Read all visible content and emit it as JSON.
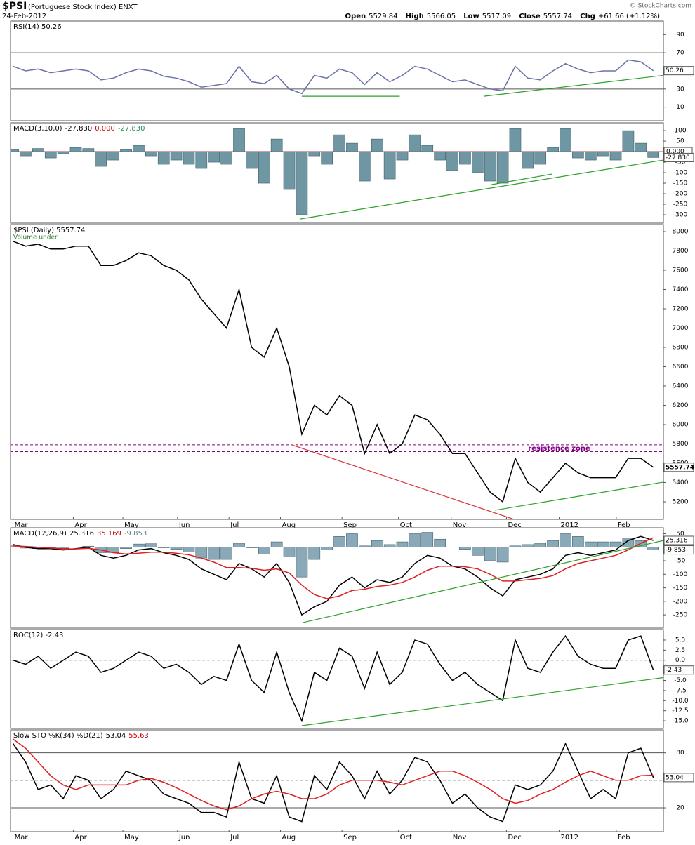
{
  "header": {
    "symbol": "$PSI",
    "name": "(Portuguese Stock Index) ENXT",
    "date": "24-Feb-2012",
    "quote": [
      {
        "label": "Open",
        "value": "5529.84"
      },
      {
        "label": "High",
        "value": "5566.05"
      },
      {
        "label": "Low",
        "value": "5517.09"
      },
      {
        "label": "Close",
        "value": "5557.74"
      },
      {
        "label": "Chg",
        "value": "+61.66 (+1.12%)"
      }
    ],
    "credit": "© StockCharts.com"
  },
  "chart_data": [
    {
      "type": "line",
      "title": "RSI(14) 50.26",
      "xlim": [
        -0.2,
        51.8
      ],
      "ylim": [
        -5,
        105
      ],
      "yticks": [
        10,
        30,
        50,
        70,
        90
      ],
      "hlines": [
        {
          "value": 30,
          "color": "#555555"
        },
        {
          "value": 70,
          "color": "#555555"
        }
      ],
      "series": [
        {
          "color": "#6a72a8",
          "style": "line",
          "last_label": "50.26",
          "values": [
            55,
            50,
            52,
            48,
            50,
            52,
            50,
            40,
            42,
            48,
            52,
            50,
            44,
            42,
            38,
            32,
            34,
            36,
            55,
            38,
            36,
            45,
            30,
            25,
            45,
            42,
            52,
            48,
            35,
            48,
            38,
            45,
            55,
            52,
            45,
            38,
            40,
            35,
            30,
            28,
            55,
            42,
            40,
            50,
            58,
            52,
            48,
            50,
            50,
            62,
            60,
            50.26
          ]
        }
      ],
      "trendlines": [
        {
          "color": "#2ca02c",
          "x": [
            23,
            30.8
          ],
          "y": [
            22,
            22
          ]
        },
        {
          "color": "#2ca02c",
          "x": [
            37.5,
            51.8
          ],
          "y": [
            22,
            45
          ]
        }
      ]
    },
    {
      "type": "bar",
      "title": "MACD(3,10,0)",
      "legend_values": [
        {
          "text": "-27.830",
          "color": "#000000"
        },
        {
          "text": "0.000",
          "color": "#cc0000"
        },
        {
          "text": "-27.830",
          "color": "#2e8b57"
        }
      ],
      "xlim": [
        -0.2,
        51.8
      ],
      "ylim": [
        -340,
        137
      ],
      "yticks": [
        -300,
        -250,
        -200,
        -150,
        -100,
        -50,
        50,
        100
      ],
      "hlines": [
        {
          "value": 0,
          "color": "#cc0000",
          "label": "0.000"
        }
      ],
      "series": [
        {
          "color": "#6f97a3",
          "style": "bar",
          "last_label": "-27.830",
          "values": [
            10,
            -20,
            15,
            -30,
            -10,
            20,
            15,
            -70,
            -40,
            10,
            30,
            -20,
            -60,
            -40,
            -60,
            -80,
            -50,
            -60,
            110,
            -80,
            -150,
            60,
            -180,
            -300,
            -20,
            -60,
            80,
            40,
            -140,
            60,
            -130,
            -40,
            80,
            30,
            -40,
            -90,
            -60,
            -100,
            -140,
            -150,
            110,
            -80,
            -60,
            20,
            110,
            -30,
            -40,
            -20,
            -40,
            100,
            40,
            -27.83
          ]
        }
      ],
      "trendlines": [
        {
          "color": "#2ca02c",
          "x": [
            22.9,
            51.8
          ],
          "y": [
            -320,
            -40
          ]
        },
        {
          "color": "#2ca02c",
          "x": [
            38.1,
            42.9
          ],
          "y": [
            -157,
            -107
          ]
        }
      ]
    },
    {
      "type": "line",
      "title": "$PSI (Daily) 5557.74",
      "subtitle": "Volume under",
      "annotation": "resistence zone",
      "xlim": [
        -0.2,
        51.8
      ],
      "ylim": [
        5018,
        8073
      ],
      "yticks": [
        5200,
        5400,
        5600,
        5800,
        6000,
        6200,
        6400,
        6600,
        6800,
        7000,
        7200,
        7400,
        7600,
        7800,
        8000
      ],
      "xticks": [
        {
          "value": 0,
          "label": "Mar"
        },
        {
          "value": 4.8,
          "label": "Apr"
        },
        {
          "value": 8.75,
          "label": "May"
        },
        {
          "value": 13.1,
          "label": "Jun"
        },
        {
          "value": 17.2,
          "label": "Jul"
        },
        {
          "value": 21.3,
          "label": "Aug"
        },
        {
          "value": 26.2,
          "label": "Sep"
        },
        {
          "value": 30.7,
          "label": "Oct"
        },
        {
          "value": 34.9,
          "label": "Nov"
        },
        {
          "value": 39.3,
          "label": "Dec"
        },
        {
          "value": 43.5,
          "label": "2012"
        },
        {
          "value": 48.05,
          "label": "Feb"
        }
      ],
      "hlines": [
        {
          "value": 5790,
          "color": "#800080",
          "dash": true
        },
        {
          "value": 5720,
          "color": "#800080",
          "dash": true
        }
      ],
      "series": [
        {
          "color": "#000000",
          "style": "line",
          "last_label": "5557.74",
          "values": [
            7900,
            7850,
            7870,
            7820,
            7820,
            7850,
            7850,
            7650,
            7650,
            7700,
            7780,
            7750,
            7650,
            7600,
            7500,
            7300,
            7150,
            7000,
            7400,
            6800,
            6700,
            7000,
            6600,
            5900,
            6200,
            6100,
            6300,
            6200,
            5700,
            6000,
            5700,
            5800,
            6100,
            6050,
            5900,
            5700,
            5700,
            5500,
            5300,
            5200,
            5650,
            5400,
            5300,
            5450,
            5600,
            5500,
            5450,
            5450,
            5450,
            5650,
            5650,
            5557.74
          ]
        }
      ],
      "trendlines": [
        {
          "color": "#e03030",
          "x": [
            22.2,
            39.9
          ],
          "y": [
            5790,
            5018
          ]
        },
        {
          "color": "#2ca02c",
          "x": [
            38.4,
            51.8
          ],
          "y": [
            5113,
            5404
          ]
        }
      ]
    },
    {
      "type": "line",
      "title": "MACD(12,26,9)",
      "legend_values": [
        {
          "text": "25.316",
          "color": "#000000"
        },
        {
          "text": "35.169",
          "color": "#cc0000"
        },
        {
          "text": "-9.853",
          "color": "#5a7f95"
        }
      ],
      "xlim": [
        -0.2,
        51.8
      ],
      "ylim": [
        -299,
        72
      ],
      "yticks": [
        -250,
        -200,
        -150,
        -100,
        -50,
        0,
        50
      ],
      "series": [
        {
          "color": "#8aa9b8",
          "style": "bar",
          "last_label": "-9.853",
          "values": [
            5,
            -3,
            -5,
            -2,
            -4,
            1,
            4,
            -20,
            -20,
            -5,
            12,
            13,
            -2,
            -8,
            -17,
            -40,
            -45,
            -45,
            15,
            -2,
            -25,
            20,
            -35,
            -110,
            -45,
            -10,
            40,
            50,
            5,
            25,
            10,
            20,
            50,
            55,
            30,
            0,
            -8,
            -30,
            -50,
            -55,
            5,
            10,
            15,
            25,
            50,
            40,
            20,
            20,
            20,
            35,
            25,
            -9.853
          ]
        },
        {
          "color": "#000000",
          "style": "line",
          "last_label": "25.316",
          "values": [
            10,
            0,
            -5,
            -5,
            -10,
            -5,
            0,
            -30,
            -40,
            -30,
            -10,
            -5,
            -20,
            -30,
            -45,
            -80,
            -100,
            -120,
            -60,
            -80,
            -110,
            -60,
            -130,
            -250,
            -220,
            -200,
            -140,
            -110,
            -150,
            -120,
            -130,
            -110,
            -60,
            -30,
            -40,
            -70,
            -80,
            -110,
            -150,
            -180,
            -120,
            -110,
            -100,
            -80,
            -30,
            -20,
            -30,
            -20,
            -10,
            25,
            40,
            25.316
          ]
        },
        {
          "color": "#e02020",
          "style": "line",
          "values": [
            5,
            3,
            0,
            -3,
            -6,
            -6,
            -4,
            -10,
            -20,
            -25,
            -22,
            -18,
            -18,
            -22,
            -28,
            -40,
            -55,
            -75,
            -75,
            -78,
            -85,
            -80,
            -95,
            -140,
            -175,
            -190,
            -180,
            -160,
            -155,
            -145,
            -140,
            -130,
            -110,
            -85,
            -70,
            -70,
            -72,
            -80,
            -100,
            -125,
            -125,
            -120,
            -115,
            -105,
            -80,
            -60,
            -50,
            -40,
            -30,
            -10,
            15,
            35.169
          ]
        }
      ],
      "trendlines": [
        {
          "color": "#2ca02c",
          "x": [
            23.1,
            51.8
          ],
          "y": [
            -278,
            25
          ]
        }
      ]
    },
    {
      "type": "line",
      "title": "ROC(12) -2.43",
      "xlim": [
        -0.2,
        51.8
      ],
      "ylim": [
        -16.9,
        7.6
      ],
      "yticks": [
        {
          "value": 5,
          "label": "5.0"
        },
        2.5,
        {
          "value": 0,
          "label": "0.0"
        },
        -2.5,
        {
          "value": -5,
          "label": "-5.0"
        },
        -7.5,
        {
          "value": -10,
          "label": "-10.0"
        },
        -12.5,
        {
          "value": -15,
          "label": "-15.0"
        }
      ],
      "hlines": [
        {
          "value": 0,
          "color": "#777777",
          "dash": true
        }
      ],
      "series": [
        {
          "color": "#000000",
          "style": "line",
          "last_label": "-2.43",
          "values": [
            0,
            -1,
            1,
            -2,
            0,
            2,
            1,
            -3,
            -2,
            0,
            2,
            1,
            -2,
            -1,
            -3,
            -6,
            -4,
            -5,
            4,
            -5,
            -8,
            2,
            -8,
            -15,
            -3,
            -5,
            3,
            1,
            -7,
            2,
            -6,
            -3,
            5,
            4,
            -1,
            -5,
            -3,
            -6,
            -8,
            -10,
            5,
            -2,
            -3,
            2,
            6,
            1,
            -1,
            -2,
            -2,
            5,
            6,
            -2.43
          ]
        }
      ],
      "trendlines": [
        {
          "color": "#2ca02c",
          "x": [
            23,
            51.8
          ],
          "y": [
            -16.2,
            -4.3
          ]
        }
      ]
    },
    {
      "type": "line",
      "title": "Slow STO %K(34) %D(21)",
      "legend_values": [
        {
          "text": "53.04",
          "color": "#000000"
        },
        {
          "text": "55.63",
          "color": "#cc0000"
        }
      ],
      "xlim": [
        -0.2,
        51.8
      ],
      "ylim": [
        -6,
        105
      ],
      "yticks": [
        20,
        80
      ],
      "xticks": [
        {
          "value": 0,
          "label": "Mar"
        },
        {
          "value": 4.8,
          "label": "Apr"
        },
        {
          "value": 8.75,
          "label": "May"
        },
        {
          "value": 13.1,
          "label": "Jun"
        },
        {
          "value": 17.2,
          "label": "Jul"
        },
        {
          "value": 21.3,
          "label": "Aug"
        },
        {
          "value": 26.2,
          "label": "Sep"
        },
        {
          "value": 30.7,
          "label": "Oct"
        },
        {
          "value": 34.9,
          "label": "Nov"
        },
        {
          "value": 39.3,
          "label": "Dec"
        },
        {
          "value": 43.5,
          "label": "2012"
        },
        {
          "value": 48.05,
          "label": "Feb"
        }
      ],
      "hlines": [
        {
          "value": 20,
          "color": "#555555"
        },
        {
          "value": 80,
          "color": "#555555"
        },
        {
          "value": 50,
          "color": "#777777",
          "dash": true
        }
      ],
      "series": [
        {
          "color": "#000000",
          "style": "line",
          "last_label": "53.04",
          "values": [
            90,
            70,
            40,
            45,
            30,
            55,
            50,
            30,
            40,
            60,
            55,
            50,
            35,
            30,
            25,
            15,
            15,
            10,
            70,
            30,
            25,
            55,
            10,
            5,
            55,
            40,
            70,
            55,
            30,
            60,
            35,
            50,
            75,
            70,
            50,
            25,
            35,
            20,
            10,
            5,
            45,
            40,
            45,
            60,
            90,
            60,
            30,
            40,
            30,
            80,
            85,
            53.04
          ]
        },
        {
          "color": "#e02020",
          "style": "line",
          "values": [
            95,
            85,
            70,
            55,
            45,
            40,
            45,
            45,
            45,
            45,
            50,
            52,
            48,
            42,
            35,
            28,
            22,
            18,
            22,
            30,
            35,
            38,
            35,
            30,
            30,
            35,
            45,
            50,
            50,
            50,
            48,
            45,
            50,
            55,
            60,
            60,
            55,
            48,
            40,
            30,
            25,
            28,
            35,
            40,
            48,
            55,
            60,
            55,
            50,
            50,
            55,
            55.63
          ]
        }
      ]
    }
  ]
}
